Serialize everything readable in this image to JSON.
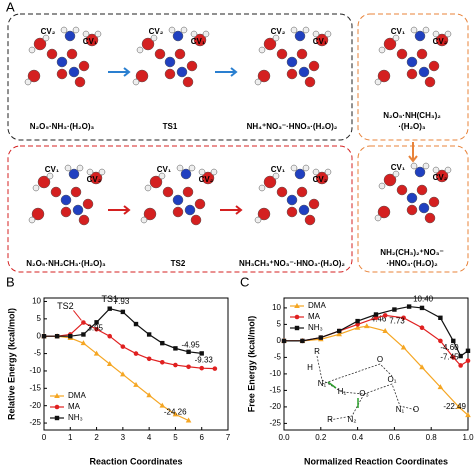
{
  "panels": {
    "a": "A",
    "b": "B",
    "c": "C"
  },
  "structures": [
    {
      "label": [
        "N₂O₅·NH₃·(H₂O)₃"
      ],
      "cv": [
        "CV₂",
        "CV₁"
      ]
    },
    {
      "label": [
        "TS1"
      ],
      "cv": [
        "CV₂",
        "CV₁"
      ]
    },
    {
      "label": [
        "NH₄⁺NO₃⁻·HNO₃·(H₂O)₂"
      ],
      "cv": [
        "CV₂",
        "CV₁"
      ]
    },
    {
      "label": [
        "N₂O₅·NH(CH₃)₂",
        "·(H₂O)₃"
      ],
      "cv": [
        "CV₁",
        "CV₂"
      ]
    },
    {
      "label": [
        "N₂O₅·NH₂CH₃·(H₂O)₃"
      ],
      "cv": [
        "CV₁",
        "CV₂"
      ]
    },
    {
      "label": [
        "TS2"
      ],
      "cv": [
        "CV₁",
        "CV₂"
      ]
    },
    {
      "label": [
        "NH₃CH₃⁺NO₃⁻·HNO₃·(H₂O)₂"
      ],
      "cv": [
        "CV₁",
        "CV₂"
      ]
    },
    {
      "label": [
        "NH₂(CH₃)₂⁺NO₃⁻",
        "·HNO₃·(H₂O)₂"
      ],
      "cv": [
        "CV₁",
        "CV₂"
      ]
    }
  ],
  "inset_labels": [
    "R",
    "H",
    "N₁",
    "H₁",
    "O₃",
    "R",
    "N₂",
    "O₁",
    "N₁",
    "O",
    "O"
  ],
  "chart_data": [
    {
      "type": "line",
      "xlabel": "Reaction Coordinates",
      "ylabel": "Relative Energy (kcal/mol)",
      "xlim": [
        0,
        7
      ],
      "xticks": [
        0,
        1,
        2,
        3,
        4,
        5,
        6,
        7
      ],
      "ylim": [
        -27,
        11
      ],
      "yticks": [
        -25,
        -20,
        -15,
        -10,
        -5,
        0,
        5,
        10
      ],
      "legend": "lower left",
      "series": [
        {
          "name": "DMA",
          "color": "#f5a623",
          "marker": "triangle",
          "x": [
            0,
            0.5,
            1,
            1.5,
            2,
            2.5,
            3,
            3.5,
            4,
            4.5,
            5,
            5.5
          ],
          "values": [
            0,
            0,
            -0.5,
            -2,
            -5,
            -8,
            -11,
            -14,
            -17,
            -20,
            -22.5,
            -24.26
          ],
          "value_labels": [
            null,
            null,
            null,
            null,
            null,
            null,
            null,
            null,
            null,
            null,
            null,
            "-24.26"
          ]
        },
        {
          "name": "MA",
          "color": "#e02020",
          "marker": "circle",
          "peak_label": "TS2",
          "x": [
            0,
            0.5,
            1,
            1.5,
            2,
            2.5,
            3,
            3.5,
            4,
            4.5,
            5,
            5.5,
            6,
            6.5
          ],
          "values": [
            0,
            0,
            0.5,
            3.95,
            2,
            0,
            -3,
            -5,
            -6.5,
            -7.5,
            -8.3,
            -8.8,
            -9.2,
            -9.33
          ],
          "value_labels": [
            null,
            null,
            null,
            "3.95",
            null,
            null,
            null,
            null,
            null,
            null,
            null,
            null,
            null,
            "-9.33"
          ]
        },
        {
          "name": "NH₃",
          "color": "#111111",
          "marker": "square",
          "peak_label": "TS1",
          "x": [
            0,
            0.5,
            1,
            1.5,
            2,
            2.5,
            3,
            3.5,
            4,
            4.5,
            5,
            5.5,
            6
          ],
          "values": [
            0,
            0,
            0,
            0.5,
            4,
            7.93,
            7,
            3.5,
            0.5,
            -2,
            -3.5,
            -4.5,
            -4.95
          ],
          "value_labels": [
            null,
            null,
            null,
            null,
            null,
            "7.93",
            null,
            null,
            null,
            null,
            null,
            null,
            "-4.95"
          ]
        }
      ]
    },
    {
      "type": "line",
      "xlabel": "Normalized Reaction Coordinates",
      "ylabel": "Free Energy (kcal/mol)",
      "xlim": [
        0,
        1
      ],
      "xticks": [
        {
          "value": 0,
          "label": "0.0"
        },
        0.2,
        0.4,
        0.6,
        0.8,
        {
          "value": 1,
          "label": "1.0"
        }
      ],
      "ylim": [
        -27,
        13
      ],
      "yticks": [
        -25,
        -20,
        -15,
        -10,
        -5,
        0,
        5,
        10
      ],
      "legend": "upper left",
      "series": [
        {
          "name": "DMA",
          "color": "#f5a623",
          "marker": "triangle",
          "x": [
            0,
            0.1,
            0.2,
            0.3,
            0.4,
            0.45,
            0.55,
            0.65,
            0.75,
            0.85,
            0.95,
            1
          ],
          "values": [
            0,
            0,
            0.5,
            2,
            4,
            4.46,
            3,
            -2,
            -8,
            -14,
            -20,
            -22.49
          ],
          "value_labels": [
            null,
            null,
            null,
            null,
            null,
            "4.46",
            null,
            null,
            null,
            null,
            null,
            "-22.49"
          ]
        },
        {
          "name": "MA",
          "color": "#e02020",
          "marker": "circle",
          "x": [
            0,
            0.1,
            0.2,
            0.3,
            0.4,
            0.5,
            0.55,
            0.65,
            0.75,
            0.85,
            0.92,
            0.96,
            1
          ],
          "values": [
            0,
            0,
            1,
            3,
            5,
            7,
            7.73,
            7,
            4,
            0,
            -5,
            -7.45,
            -6
          ],
          "value_labels": [
            null,
            null,
            null,
            null,
            null,
            null,
            "7.73",
            null,
            null,
            null,
            null,
            "-7.45",
            null
          ]
        },
        {
          "name": "NH₃",
          "color": "#111111",
          "marker": "square",
          "x": [
            0,
            0.1,
            0.2,
            0.3,
            0.4,
            0.5,
            0.6,
            0.68,
            0.75,
            0.85,
            0.92,
            0.96,
            1
          ],
          "values": [
            0,
            0,
            1,
            3,
            6,
            8,
            9.5,
            10.4,
            10,
            7,
            0,
            -4.6,
            -3
          ],
          "value_labels": [
            null,
            null,
            null,
            null,
            null,
            null,
            null,
            "10.40",
            null,
            null,
            null,
            "-4.60",
            null
          ]
        }
      ]
    }
  ]
}
